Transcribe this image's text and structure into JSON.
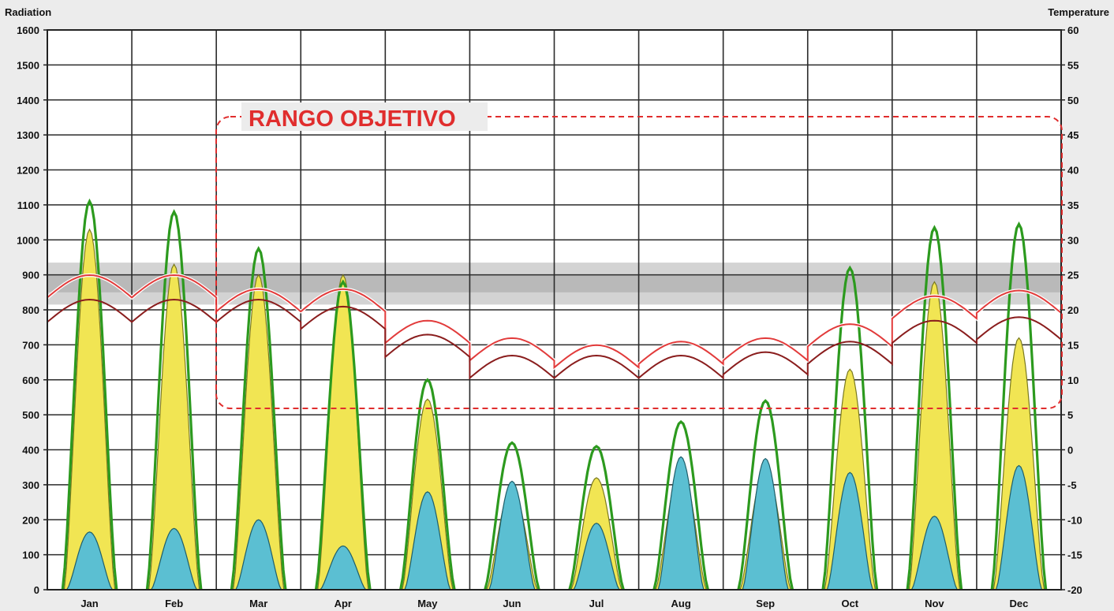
{
  "chart_data": {
    "type": "area",
    "left_axis": {
      "title": "Radiation",
      "range": [
        0,
        1600
      ],
      "ticks": [
        "0",
        "100",
        "200",
        "300",
        "400",
        "500",
        "600",
        "700",
        "800",
        "900",
        "1000",
        "1100",
        "1200",
        "1300",
        "1400",
        "1500",
        "1600"
      ]
    },
    "right_axis": {
      "title": "Temperature",
      "range": [
        -20,
        60
      ],
      "ticks": [
        "-20",
        "-15",
        "-10",
        "-5",
        "0",
        "5",
        "10",
        "15",
        "20",
        "25",
        "30",
        "35",
        "40",
        "45",
        "50",
        "55",
        "60"
      ]
    },
    "categories": [
      "Jan",
      "Feb",
      "Mar",
      "Apr",
      "May",
      "Jun",
      "Jul",
      "Aug",
      "Sep",
      "Oct",
      "Nov",
      "Dec"
    ],
    "grid": true,
    "comfort_band": {
      "axis": "left",
      "outer": [
        815,
        935
      ],
      "inner": [
        850,
        900
      ],
      "color": "#b9b9b9"
    },
    "annotation": {
      "text": "RANGO OBJETIVO",
      "color": "#e02d2d"
    },
    "series": [
      {
        "name": "",
        "kind": "area",
        "axis": "left",
        "color": "#f1e553",
        "values": [
          1030,
          930,
          900,
          900,
          545,
          290,
          320,
          350,
          350,
          630,
          880,
          720
        ]
      },
      {
        "name": "",
        "kind": "line",
        "axis": "left",
        "color": "#2c9a1e",
        "values": [
          1110,
          1080,
          975,
          880,
          600,
          420,
          410,
          480,
          540,
          920,
          1035,
          1045
        ]
      },
      {
        "name": "",
        "kind": "area",
        "axis": "left",
        "color": "#5bbfd2",
        "values": [
          165,
          175,
          200,
          125,
          280,
          310,
          190,
          380,
          375,
          335,
          210,
          355
        ]
      },
      {
        "name": "",
        "kind": "line",
        "axis": "right",
        "color": "#e23b3b",
        "values": [
          24,
          24,
          22,
          22,
          17.5,
          15,
          14,
          14.5,
          15,
          17,
          21,
          21.8
        ]
      },
      {
        "name": "",
        "kind": "line",
        "axis": "right",
        "color": "#8a1d1d",
        "values": [
          20.5,
          20.5,
          20.5,
          19.5,
          15.5,
          12.5,
          12.5,
          12.5,
          13,
          14.5,
          17.5,
          18
        ]
      }
    ]
  }
}
